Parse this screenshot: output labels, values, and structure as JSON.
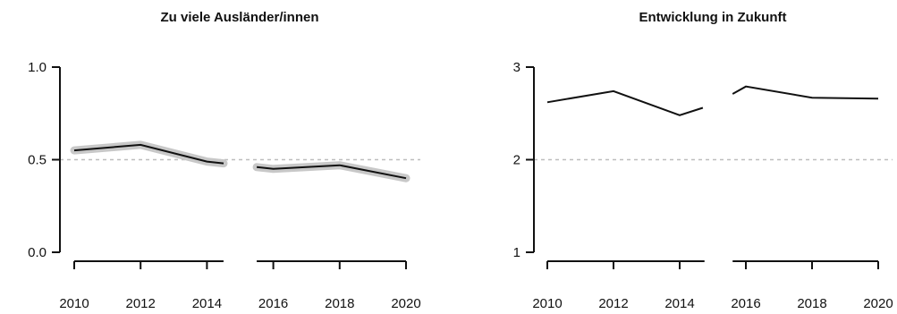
{
  "chart_data": [
    {
      "type": "line",
      "title": "Zu viele Ausländer/innen",
      "xlabel": "",
      "ylabel": "",
      "ylim": [
        0.0,
        1.0
      ],
      "yticks": [
        0.0,
        0.5,
        1.0
      ],
      "ytick_labels": [
        "0.0",
        "0.5",
        "1.0"
      ],
      "xticks": [
        2010,
        2012,
        2014,
        2016,
        2018,
        2020
      ],
      "xtick_labels": [
        "2010",
        "2012",
        "2014",
        "2016",
        "2018",
        "2020"
      ],
      "reference_line": 0.5,
      "grid": false,
      "confidence_band": true,
      "segments": [
        {
          "x": [
            2010,
            2012,
            2014,
            2014.5
          ],
          "y": [
            0.55,
            0.58,
            0.49,
            0.48
          ]
        },
        {
          "x": [
            2015.5,
            2016,
            2018,
            2020
          ],
          "y": [
            0.46,
            0.45,
            0.47,
            0.4
          ]
        }
      ]
    },
    {
      "type": "line",
      "title": "Entwicklung in Zukunft",
      "xlabel": "",
      "ylabel": "",
      "ylim": [
        1,
        3
      ],
      "yticks": [
        1,
        2,
        3
      ],
      "ytick_labels": [
        "1",
        "2",
        "3"
      ],
      "xticks": [
        2010,
        2012,
        2014,
        2016,
        2018,
        2020
      ],
      "xtick_labels": [
        "2010",
        "2012",
        "2014",
        "2016",
        "2018",
        "2020"
      ],
      "reference_line": 2,
      "grid": false,
      "confidence_band": false,
      "segments": [
        {
          "x": [
            2010,
            2012,
            2014,
            2014.7
          ],
          "y": [
            2.62,
            2.74,
            2.48,
            2.56
          ]
        },
        {
          "x": [
            2015.6,
            2016,
            2018,
            2020
          ],
          "y": [
            2.71,
            2.79,
            2.67,
            2.66
          ]
        }
      ]
    }
  ]
}
